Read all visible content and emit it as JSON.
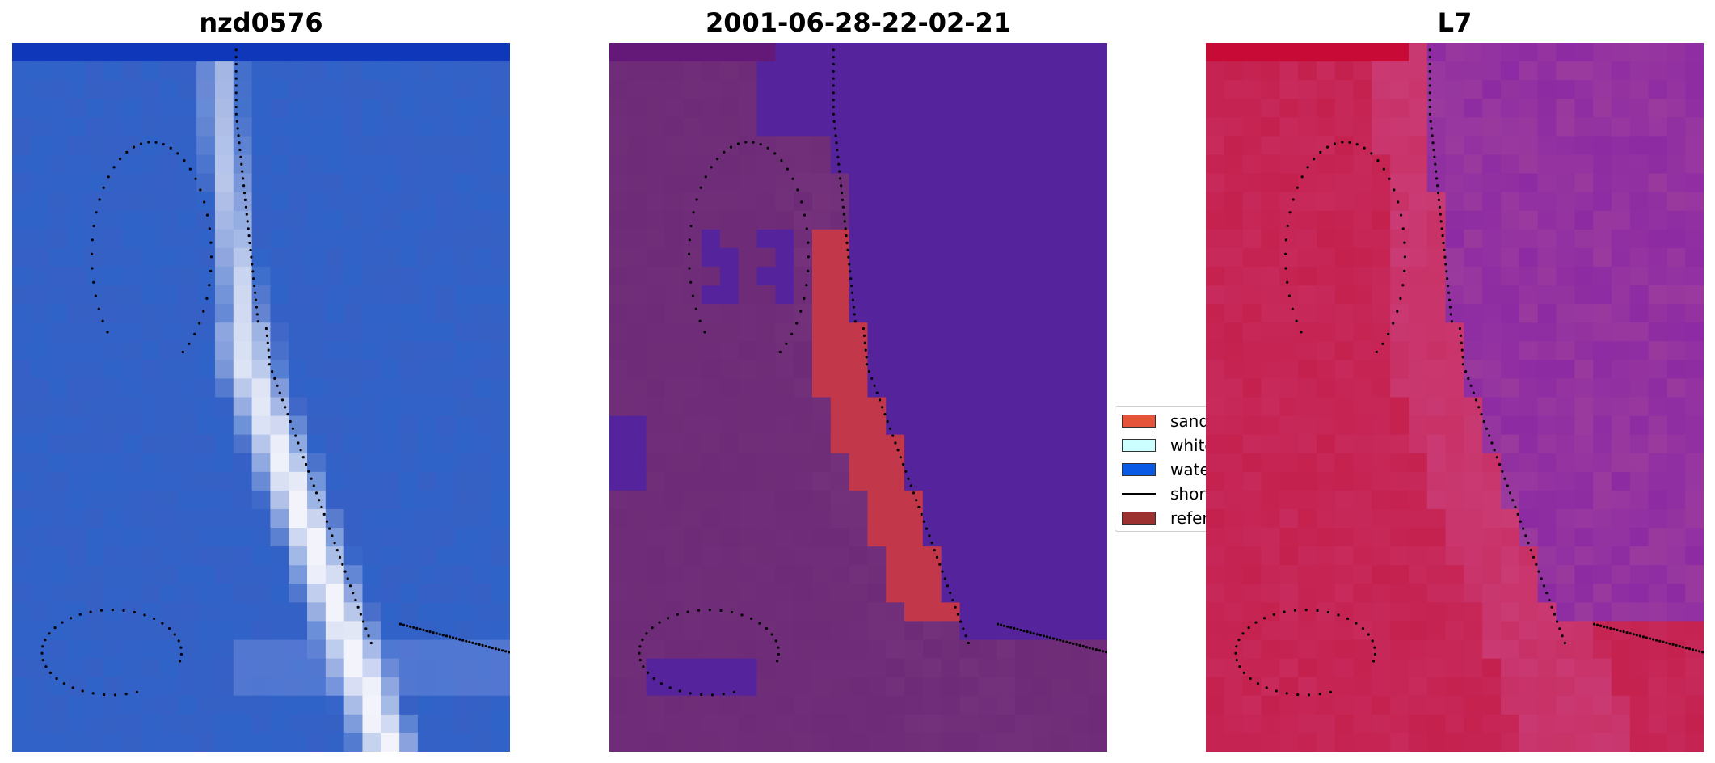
{
  "panels": [
    {
      "title": "nzd0576"
    },
    {
      "title": "2001-06-28-22-02-21"
    },
    {
      "title": "L7"
    }
  ],
  "legend": {
    "items": [
      {
        "label": "sand",
        "color": "#e5533a",
        "kind": "patch"
      },
      {
        "label": "white-water",
        "color": "#ccffff",
        "kind": "patch"
      },
      {
        "label": "water",
        "color": "#0a5ae6",
        "kind": "patch"
      },
      {
        "label": "shoreline",
        "color": "#000000",
        "kind": "line"
      },
      {
        "label": "reference shoreline buffer",
        "color": "#9c3030",
        "kind": "patch"
      }
    ]
  },
  "colors": {
    "rgb_water": "#2f63c8",
    "rgb_beach": "#f3f4fb",
    "class_land": "#6e2c78",
    "class_water": "#55249c",
    "class_sand": "#c2374a",
    "swir_land": "#c41c47",
    "swir_water": "#9a3a9e",
    "shoreline_dots": "#000000"
  }
}
